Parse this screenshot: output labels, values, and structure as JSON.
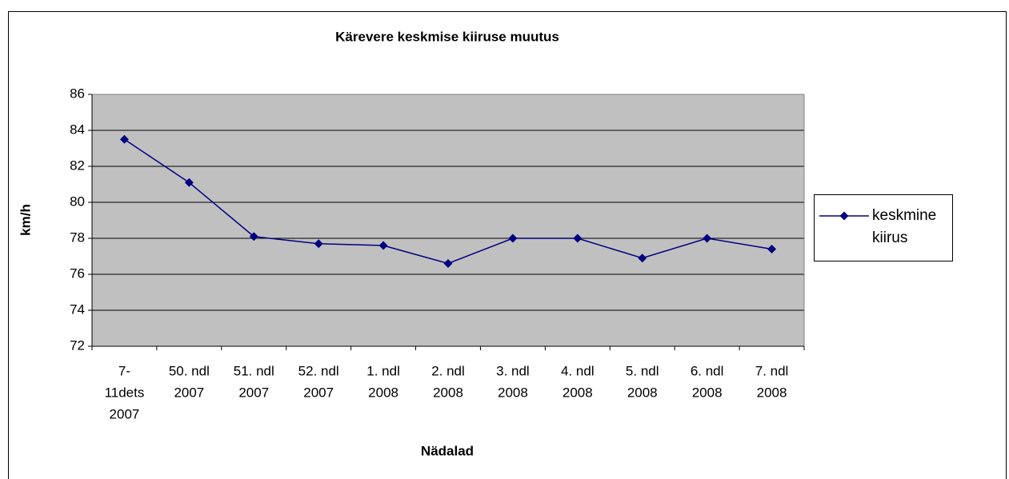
{
  "chart_data": {
    "type": "line",
    "title": "Kärevere keskmise kiiruse muutus",
    "x_label": "Nädalad",
    "y_label": "km/h",
    "categories": [
      [
        "7-",
        "11dets",
        "2007"
      ],
      [
        "50. ndl",
        "2007"
      ],
      [
        "51. ndl",
        "2007"
      ],
      [
        "52. ndl",
        "2007"
      ],
      [
        "1. ndl",
        "2008"
      ],
      [
        "2. ndl",
        "2008"
      ],
      [
        "3. ndl",
        "2008"
      ],
      [
        "4. ndl",
        "2008"
      ],
      [
        "5. ndl",
        "2008"
      ],
      [
        "6. ndl",
        "2008"
      ],
      [
        "7. ndl",
        "2008"
      ]
    ],
    "series": [
      {
        "name": "keskmine kiirus",
        "color": "#000080",
        "values": [
          83.5,
          81.1,
          78.1,
          77.7,
          77.6,
          76.6,
          78,
          78,
          76.9,
          78,
          77.4
        ]
      }
    ],
    "ylim": [
      72,
      86
    ],
    "yticks": [
      72,
      74,
      76,
      78,
      80,
      82,
      84,
      86
    ],
    "grid": true,
    "legend": "right"
  }
}
